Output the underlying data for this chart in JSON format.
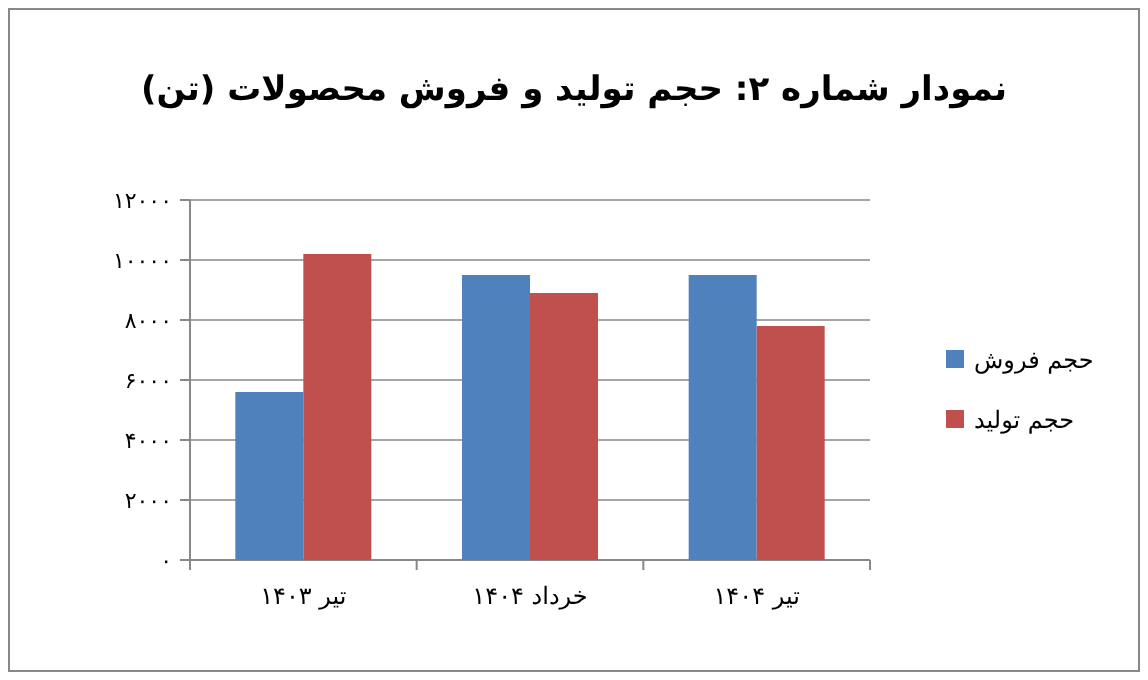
{
  "chart_data": {
    "type": "bar",
    "title": "نمودار شماره ۲: حجم تولید و فروش محصولات (تن)",
    "categories": [
      "تیر ۱۴۰۳",
      "خرداد ۱۴۰۴",
      "تیر ۱۴۰۴"
    ],
    "series": [
      {
        "name": "حجم فروش",
        "color": "#4f81bd",
        "values": [
          5600,
          9500,
          9500
        ]
      },
      {
        "name": "حجم تولید",
        "color": "#c0504d",
        "values": [
          10200,
          8900,
          7800
        ]
      }
    ],
    "ylim": [
      0,
      12000
    ],
    "yticks": [
      {
        "value": 0,
        "label": "۰"
      },
      {
        "value": 2000,
        "label": "۲۰۰۰"
      },
      {
        "value": 4000,
        "label": "۴۰۰۰"
      },
      {
        "value": 6000,
        "label": "۶۰۰۰"
      },
      {
        "value": 8000,
        "label": "۸۰۰۰"
      },
      {
        "value": 10000,
        "label": "۱۰۰۰۰"
      },
      {
        "value": 12000,
        "label": "۱۲۰۰۰"
      }
    ],
    "grid": true,
    "legend": "right"
  }
}
